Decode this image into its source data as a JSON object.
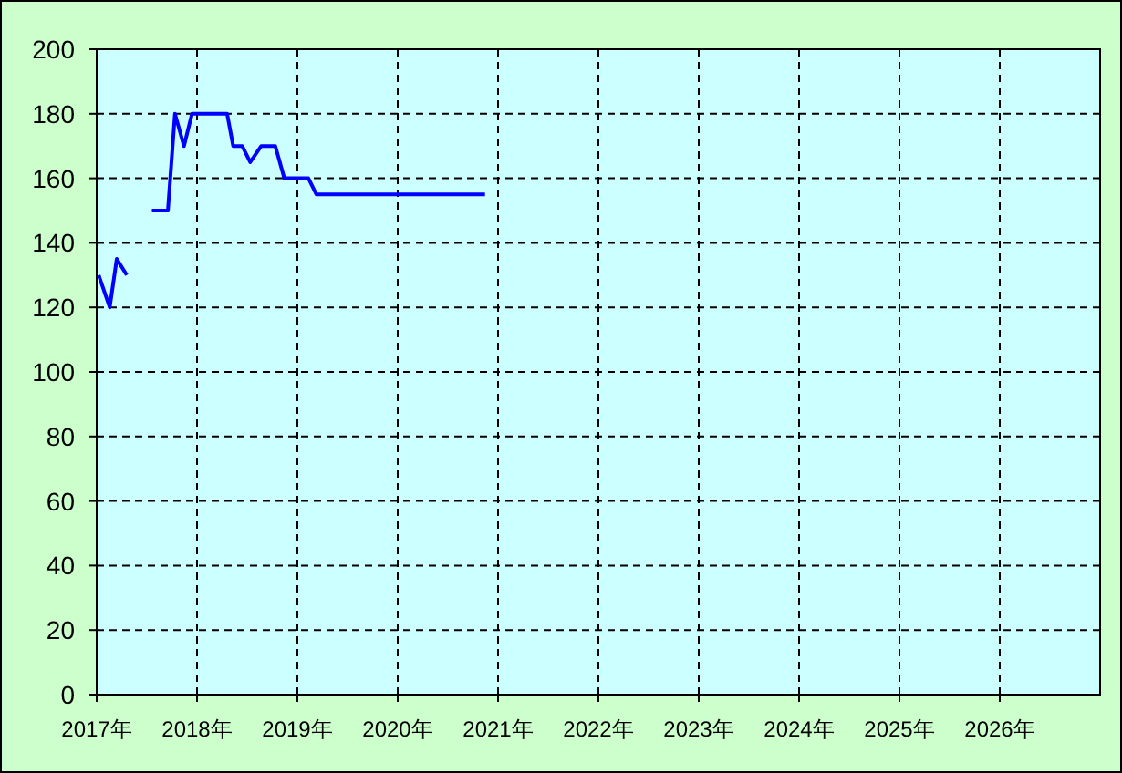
{
  "chart_data": {
    "type": "line",
    "x": [
      2017.02,
      2017.13,
      2017.2,
      2017.3,
      2017.42,
      2017.55,
      2017.71,
      2017.78,
      2017.87,
      2017.95,
      2018.3,
      2018.36,
      2018.45,
      2018.53,
      2018.64,
      2018.78,
      2018.87,
      2019.11,
      2019.19,
      2020.87
    ],
    "series": [
      {
        "color": "#0000ff",
        "values": [
          130,
          120,
          135,
          130,
          null,
          150,
          150,
          180,
          170,
          180,
          180,
          170,
          170,
          165,
          170,
          170,
          160,
          160,
          155,
          155
        ]
      }
    ],
    "xlim": [
      2017,
      2027
    ],
    "xticks": [
      {
        "value": 2017,
        "label": "2017年"
      },
      {
        "value": 2018,
        "label": "2018年"
      },
      {
        "value": 2019,
        "label": "2019年"
      },
      {
        "value": 2020,
        "label": "2020年"
      },
      {
        "value": 2021,
        "label": "2021年"
      },
      {
        "value": 2022,
        "label": "2022年"
      },
      {
        "value": 2023,
        "label": "2023年"
      },
      {
        "value": 2024,
        "label": "2024年"
      },
      {
        "value": 2025,
        "label": "2025年"
      },
      {
        "value": 2026,
        "label": "2026年"
      }
    ],
    "ylim": [
      0,
      200
    ],
    "yticks": [
      0,
      20,
      40,
      60,
      80,
      100,
      120,
      140,
      160,
      180,
      200
    ],
    "grid": true
  }
}
